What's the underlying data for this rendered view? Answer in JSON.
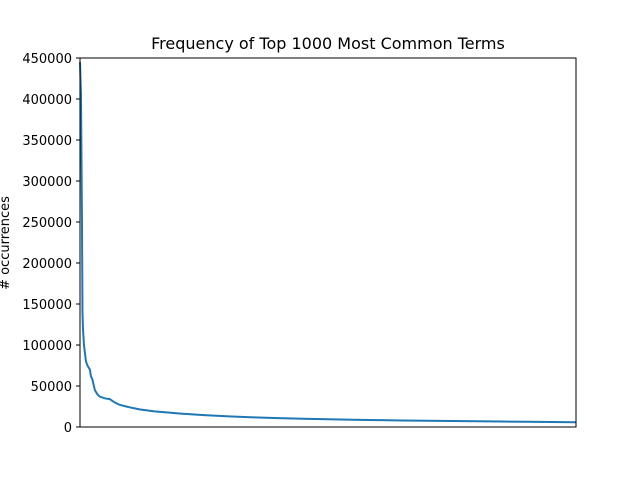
{
  "chart_data": {
    "type": "line",
    "title": "Frequency of Top 1000 Most Common Terms",
    "xlabel": "",
    "ylabel": "# occurrences",
    "xlim": [
      0,
      1000
    ],
    "ylim": [
      0,
      450000
    ],
    "yticks": [
      "0",
      "50000",
      "100000",
      "150000",
      "200000",
      "250000",
      "300000",
      "350000",
      "400000",
      "450000"
    ],
    "xticks": [],
    "grid": false,
    "line_color": "#1f77b4",
    "series": [
      {
        "x": [
          0,
          2,
          4,
          5,
          6,
          8,
          10,
          12,
          15,
          18,
          20,
          22,
          25,
          28,
          30,
          35,
          40,
          50,
          60,
          70,
          80,
          100,
          120,
          150,
          180,
          200,
          250,
          300,
          350,
          400,
          450,
          500,
          550,
          600,
          650,
          700,
          750,
          800,
          850,
          900,
          950,
          999
        ],
        "y": [
          445000,
          405000,
          250000,
          140000,
          120000,
          100000,
          90000,
          80000,
          75000,
          72000,
          70000,
          62000,
          58000,
          50000,
          45000,
          40000,
          37000,
          35000,
          34000,
          30000,
          27000,
          24000,
          21500,
          19000,
          17500,
          16500,
          14500,
          13000,
          11800,
          10800,
          10000,
          9400,
          8900,
          8400,
          8000,
          7600,
          7300,
          7000,
          6700,
          6400,
          6100,
          5800
        ]
      }
    ]
  }
}
